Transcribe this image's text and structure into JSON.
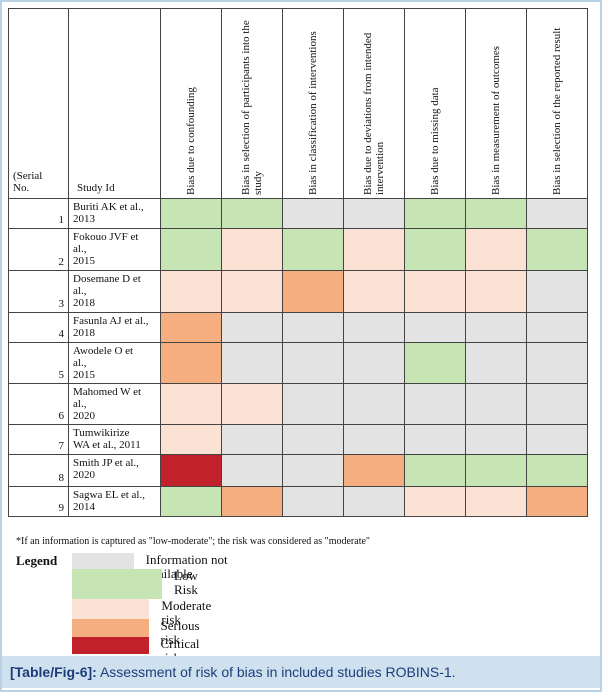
{
  "header": {
    "serial": "(Serial\nNo.",
    "study": "Study Id",
    "domains": [
      "Bias due to confounding",
      "Bias in selection of participants into the study",
      "Bias in classification of interventions",
      "Bias due to deviations from intended intervention",
      "Bias due to missing data",
      "Bias in measurement of outcomes",
      "Bias in selection of the reported result"
    ]
  },
  "rows": [
    {
      "serial": "1",
      "study": "Buriti AK et al.,\n2013",
      "risk": [
        1,
        1,
        0,
        0,
        1,
        1,
        0
      ]
    },
    {
      "serial": "2",
      "study": "Fokouo JVF et\nal.,\n2015",
      "risk": [
        1,
        2,
        1,
        2,
        1,
        2,
        1
      ]
    },
    {
      "serial": "3",
      "study": "Dosemane D et\nal.,\n2018",
      "risk": [
        2,
        2,
        3,
        2,
        2,
        2,
        0
      ]
    },
    {
      "serial": "4",
      "study": "Fasunla AJ et al.,\n2018",
      "risk": [
        3,
        0,
        0,
        0,
        0,
        0,
        0
      ]
    },
    {
      "serial": "5",
      "study": "Awodele O et\nal.,\n2015",
      "risk": [
        3,
        0,
        0,
        0,
        1,
        0,
        0
      ]
    },
    {
      "serial": "6",
      "study": "Mahomed W et\nal.,\n2020",
      "risk": [
        2,
        2,
        0,
        0,
        0,
        0,
        0
      ]
    },
    {
      "serial": "7",
      "study": "Tumwikirize\nWA et al., 2011",
      "risk": [
        2,
        0,
        0,
        0,
        0,
        0,
        0
      ]
    },
    {
      "serial": "8",
      "study": "Smith JP et al.,\n2020",
      "risk": [
        4,
        0,
        0,
        3,
        1,
        1,
        1
      ]
    },
    {
      "serial": "9",
      "study": "Sagwa EL et al.,\n2014",
      "risk": [
        1,
        3,
        0,
        0,
        2,
        2,
        3
      ]
    }
  ],
  "footnote": "*If an information is captured as \"low-moderate\"; the risk was considered as \"moderate\"",
  "legend": {
    "title": "Legend",
    "items": [
      {
        "label": "Information not available",
        "color": "#e3e3e3"
      },
      {
        "label": "Low\nRisk",
        "color": "#c7e4b4"
      },
      {
        "label": "Moderate risk",
        "color": "#fbe2d4"
      },
      {
        "label": "Serious risk",
        "color": "#f5ae80"
      },
      {
        "label": "Critical risk",
        "color": "#c0212b"
      }
    ]
  },
  "caption": {
    "label": "[Table/Fig-6]:",
    "text": " Assessment of risk of bias in included studies ROBINS-1."
  }
}
